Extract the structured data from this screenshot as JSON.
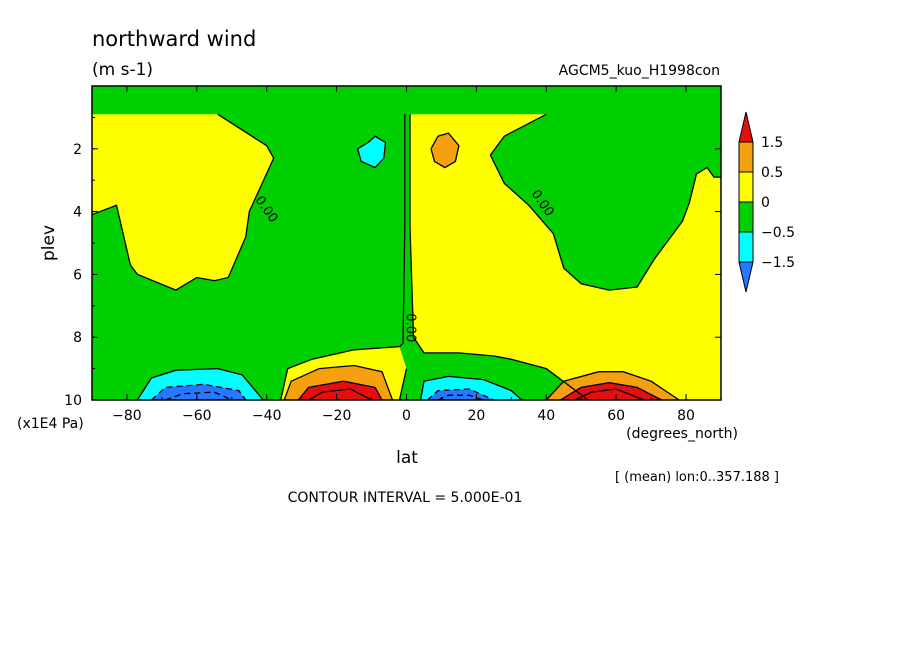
{
  "chart_data": {
    "type": "contour",
    "title": "northward wind",
    "units": "(m s-1)",
    "experiment": "AGCM5_kuo_H1998con",
    "xlabel": "lat",
    "xunits": "(degrees_north)",
    "ylabel": "plev",
    "yunits": "(x1E4 Pa)",
    "subtitle": "[ (mean) lon:0..357.188 ]",
    "contour_interval": "CONTOUR INTERVAL = 5.000E-01",
    "xlim": [
      -90,
      90
    ],
    "ylim": [
      0,
      10
    ],
    "x_ticks": [
      -80,
      -60,
      -40,
      -20,
      0,
      20,
      40,
      60,
      80
    ],
    "y_ticks": [
      2,
      4,
      6,
      8,
      10
    ],
    "contour_labels": [
      {
        "text": "0.00",
        "x": -41,
        "y": 4.0
      },
      {
        "text": "0.00",
        "x": 0,
        "y": 7.7
      },
      {
        "text": "0.00",
        "x": 38,
        "y": 3.8
      }
    ],
    "colorbar": {
      "levels": [
        "1.5",
        "0.5",
        "0",
        "-0.5",
        "-1.5"
      ],
      "colors": [
        "#e60f0f",
        "#f5a00f",
        "#ffff00",
        "#00d000",
        "#00ffff",
        "#2878ff"
      ]
    },
    "regions": [
      {
        "name": "positive",
        "color": "#ffff00",
        "points": [
          [
            -90,
            0.9
          ],
          [
            -54,
            0.9
          ],
          [
            -40,
            1.9
          ],
          [
            -38,
            2.3
          ],
          [
            -45,
            4.0
          ],
          [
            -46,
            4.8
          ],
          [
            -51,
            6.1
          ],
          [
            -55,
            6.2
          ],
          [
            -60,
            6.1
          ],
          [
            -63,
            6.3
          ],
          [
            -66,
            6.5
          ],
          [
            -77,
            6.0
          ],
          [
            -79,
            5.7
          ],
          [
            -83,
            3.8
          ],
          [
            -90,
            4.1
          ]
        ]
      },
      {
        "name": "positive",
        "color": "#ffff00",
        "points": [
          [
            1,
            0.9
          ],
          [
            40,
            0.9
          ],
          [
            28,
            1.6
          ],
          [
            24,
            2.2
          ],
          [
            28,
            3.1
          ],
          [
            35,
            3.8
          ],
          [
            42,
            4.7
          ],
          [
            45,
            5.8
          ],
          [
            50,
            6.3
          ],
          [
            58,
            6.5
          ],
          [
            66,
            6.4
          ],
          [
            71,
            5.5
          ],
          [
            75,
            4.9
          ],
          [
            79,
            4.3
          ],
          [
            81,
            3.7
          ],
          [
            83,
            2.8
          ],
          [
            86,
            2.6
          ],
          [
            88,
            2.9
          ],
          [
            90,
            2.9
          ],
          [
            90,
            10
          ],
          [
            52,
            10
          ],
          [
            40,
            9.0
          ],
          [
            30,
            8.7
          ],
          [
            25,
            8.6
          ],
          [
            15,
            8.5
          ],
          [
            5,
            8.5
          ],
          [
            2,
            8.0
          ],
          [
            1,
            4.5
          ]
        ]
      },
      {
        "name": "positive",
        "color": "#ffff00",
        "points": [
          [
            -36,
            10
          ],
          [
            -34,
            9.0
          ],
          [
            -27,
            8.7
          ],
          [
            -15,
            8.4
          ],
          [
            -2,
            8.3
          ],
          [
            0,
            9.0
          ],
          [
            -2,
            10
          ]
        ]
      },
      {
        "name": "positive",
        "color": "#f5a00f",
        "points": [
          [
            -35,
            10
          ],
          [
            -33,
            9.4
          ],
          [
            -25,
            9.0
          ],
          [
            -15,
            8.9
          ],
          [
            -7,
            9.1
          ],
          [
            -4,
            10
          ]
        ]
      },
      {
        "name": "positive",
        "color": "#f5a00f",
        "points": [
          [
            40,
            10
          ],
          [
            45,
            9.4
          ],
          [
            55,
            9.1
          ],
          [
            62,
            9.1
          ],
          [
            70,
            9.4
          ],
          [
            78,
            10
          ]
        ]
      },
      {
        "name": "positive",
        "color": "#e60f0f",
        "points": [
          [
            -31,
            10
          ],
          [
            -28,
            9.6
          ],
          [
            -18,
            9.4
          ],
          [
            -9,
            9.6
          ],
          [
            -7,
            10
          ]
        ]
      },
      {
        "name": "positive",
        "color": "#e60f0f",
        "points": [
          [
            44,
            10
          ],
          [
            50,
            9.6
          ],
          [
            58,
            9.45
          ],
          [
            66,
            9.6
          ],
          [
            73,
            10
          ]
        ]
      },
      {
        "name": "positive",
        "color": "#f5a00f",
        "points": [
          [
            7,
            2.0
          ],
          [
            9,
            1.6
          ],
          [
            12,
            1.5
          ],
          [
            15,
            1.9
          ],
          [
            14,
            2.4
          ],
          [
            11,
            2.6
          ],
          [
            8,
            2.4
          ]
        ]
      },
      {
        "name": "negative",
        "color": "#00ffff",
        "points": [
          [
            -11,
            1.8
          ],
          [
            -9,
            1.6
          ],
          [
            -6,
            1.8
          ],
          [
            -6.5,
            2.3
          ],
          [
            -9,
            2.6
          ],
          [
            -13,
            2.4
          ],
          [
            -14,
            2.0
          ]
        ]
      },
      {
        "name": "negative",
        "color": "#00ffff",
        "points": [
          [
            -77,
            10
          ],
          [
            -73,
            9.3
          ],
          [
            -66,
            9.05
          ],
          [
            -54,
            9.0
          ],
          [
            -47,
            9.2
          ],
          [
            -41,
            10
          ]
        ]
      },
      {
        "name": "negative",
        "color": "#00ffff",
        "points": [
          [
            4,
            10
          ],
          [
            5,
            9.4
          ],
          [
            12,
            9.25
          ],
          [
            22,
            9.35
          ],
          [
            30,
            9.7
          ],
          [
            33,
            10
          ]
        ]
      },
      {
        "name": "negative",
        "color": "#2878ff",
        "points": [
          [
            -73,
            10
          ],
          [
            -69,
            9.6
          ],
          [
            -58,
            9.5
          ],
          [
            -48,
            9.7
          ],
          [
            -46,
            10
          ]
        ]
      },
      {
        "name": "negative",
        "color": "#2878ff",
        "points": [
          [
            6,
            10
          ],
          [
            9,
            9.7
          ],
          [
            18,
            9.65
          ],
          [
            25,
            10
          ]
        ]
      }
    ],
    "contour_lines": [
      {
        "style": "solid",
        "points": [
          [
            -54,
            0.9
          ],
          [
            -40,
            1.9
          ],
          [
            -38,
            2.3
          ],
          [
            -45,
            4.0
          ],
          [
            -46,
            4.8
          ],
          [
            -51,
            6.1
          ],
          [
            -55,
            6.2
          ],
          [
            -60,
            6.1
          ],
          [
            -63,
            6.3
          ],
          [
            -66,
            6.5
          ],
          [
            -77,
            6.0
          ],
          [
            -79,
            5.7
          ],
          [
            -83,
            3.8
          ],
          [
            -90,
            4.1
          ]
        ]
      },
      {
        "style": "solid",
        "points": [
          [
            40,
            0.9
          ],
          [
            28,
            1.6
          ],
          [
            24,
            2.2
          ],
          [
            28,
            3.1
          ],
          [
            35,
            3.8
          ],
          [
            42,
            4.7
          ],
          [
            45,
            5.8
          ],
          [
            50,
            6.3
          ],
          [
            58,
            6.5
          ],
          [
            66,
            6.4
          ],
          [
            71,
            5.5
          ],
          [
            75,
            4.9
          ],
          [
            79,
            4.3
          ],
          [
            81,
            3.7
          ],
          [
            83,
            2.8
          ],
          [
            86,
            2.6
          ],
          [
            88,
            2.9
          ],
          [
            90,
            2.9
          ]
        ]
      },
      {
        "style": "solid",
        "points": [
          [
            1,
            0.9
          ],
          [
            1,
            4.5
          ],
          [
            2,
            8.0
          ],
          [
            5,
            8.5
          ],
          [
            15,
            8.5
          ],
          [
            25,
            8.6
          ],
          [
            30,
            8.7
          ],
          [
            40,
            9.0
          ],
          [
            52,
            10
          ]
        ]
      },
      {
        "style": "solid",
        "points": [
          [
            -0.5,
            0.9
          ],
          [
            -0.5,
            4.5
          ],
          [
            -1,
            8.2
          ],
          [
            -2,
            8.3
          ],
          [
            -15,
            8.4
          ],
          [
            -27,
            8.7
          ],
          [
            -34,
            9.0
          ],
          [
            -36,
            10
          ]
        ]
      },
      {
        "style": "solid",
        "points": [
          [
            0,
            9.0
          ],
          [
            -2,
            10
          ]
        ]
      },
      {
        "style": "solid",
        "points": [
          [
            -35,
            10
          ],
          [
            -33,
            9.4
          ],
          [
            -25,
            9.0
          ],
          [
            -15,
            8.9
          ],
          [
            -7,
            9.1
          ],
          [
            -4,
            10
          ]
        ]
      },
      {
        "style": "solid",
        "points": [
          [
            -31,
            10
          ],
          [
            -28,
            9.6
          ],
          [
            -18,
            9.4
          ],
          [
            -9,
            9.6
          ],
          [
            -7,
            10
          ]
        ]
      },
      {
        "style": "solid",
        "points": [
          [
            -28,
            10
          ],
          [
            -24,
            9.75
          ],
          [
            -16,
            9.65
          ],
          [
            -10,
            10
          ]
        ]
      },
      {
        "style": "solid",
        "points": [
          [
            40,
            10
          ],
          [
            45,
            9.4
          ],
          [
            55,
            9.1
          ],
          [
            62,
            9.1
          ],
          [
            70,
            9.4
          ],
          [
            78,
            10
          ]
        ]
      },
      {
        "style": "solid",
        "points": [
          [
            44,
            10
          ],
          [
            50,
            9.6
          ],
          [
            58,
            9.45
          ],
          [
            66,
            9.6
          ],
          [
            73,
            10
          ]
        ]
      },
      {
        "style": "solid",
        "points": [
          [
            48,
            10
          ],
          [
            53,
            9.75
          ],
          [
            60,
            9.65
          ],
          [
            68,
            10
          ]
        ]
      },
      {
        "style": "solid",
        "points": [
          [
            7,
            2.0
          ],
          [
            9,
            1.6
          ],
          [
            12,
            1.5
          ],
          [
            15,
            1.9
          ],
          [
            14,
            2.4
          ],
          [
            11,
            2.6
          ],
          [
            8,
            2.4
          ],
          [
            7,
            2.0
          ]
        ]
      },
      {
        "style": "solid",
        "points": [
          [
            -11,
            1.8
          ],
          [
            -9,
            1.6
          ],
          [
            -6,
            1.8
          ],
          [
            -6.5,
            2.3
          ],
          [
            -9,
            2.6
          ],
          [
            -13,
            2.4
          ],
          [
            -14,
            2.0
          ],
          [
            -11,
            1.8
          ]
        ]
      },
      {
        "style": "solid",
        "points": [
          [
            -77,
            10
          ],
          [
            -73,
            9.3
          ],
          [
            -66,
            9.05
          ],
          [
            -54,
            9.0
          ],
          [
            -47,
            9.2
          ],
          [
            -41,
            10
          ]
        ]
      },
      {
        "style": "solid",
        "points": [
          [
            4,
            10
          ],
          [
            5,
            9.4
          ],
          [
            12,
            9.25
          ],
          [
            22,
            9.35
          ],
          [
            30,
            9.7
          ],
          [
            33,
            10
          ]
        ]
      },
      {
        "style": "dashed",
        "points": [
          [
            -73,
            10
          ],
          [
            -69,
            9.6
          ],
          [
            -58,
            9.5
          ],
          [
            -48,
            9.7
          ],
          [
            -46,
            10
          ]
        ]
      },
      {
        "style": "dashed",
        "points": [
          [
            -69,
            10
          ],
          [
            -64,
            9.8
          ],
          [
            -55,
            9.75
          ],
          [
            -50,
            10
          ]
        ]
      },
      {
        "style": "dashed",
        "points": [
          [
            6,
            10
          ],
          [
            9,
            9.7
          ],
          [
            18,
            9.65
          ],
          [
            25,
            10
          ]
        ]
      },
      {
        "style": "dashed",
        "points": [
          [
            9,
            10
          ],
          [
            12,
            9.85
          ],
          [
            18,
            9.85
          ],
          [
            22,
            10
          ]
        ]
      }
    ]
  }
}
